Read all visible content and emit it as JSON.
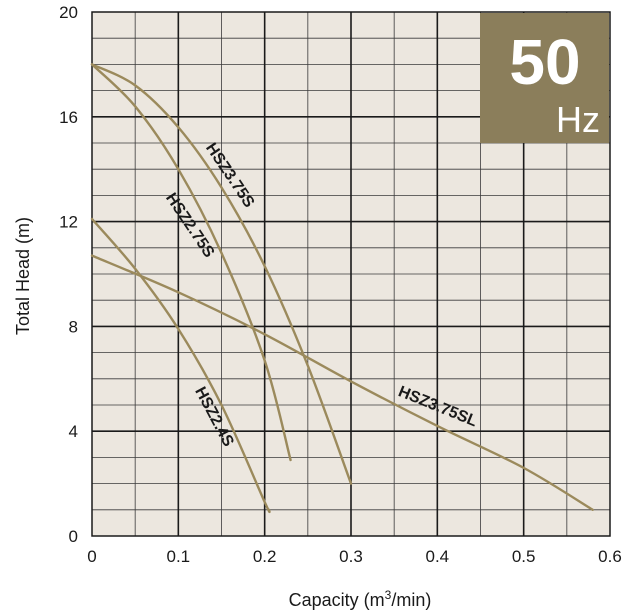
{
  "chart_data": {
    "type": "line",
    "xlabel": "Capacity (m",
    "xlabel_sup": "3",
    "xlabel_tail": "/min)",
    "ylabel": "Total Head (m)",
    "xlim": [
      0,
      0.6
    ],
    "ylim": [
      0,
      20
    ],
    "x_ticks": [
      "0",
      "0.1",
      "0.2",
      "0.3",
      "0.4",
      "0.5",
      "0.6"
    ],
    "y_ticks": [
      "0",
      "4",
      "8",
      "12",
      "16",
      "20"
    ],
    "grid": true,
    "badge": {
      "value": "50",
      "unit": "Hz",
      "color": "#8b7e5b"
    },
    "background_color": "#ece7df",
    "curve_color": "#9b8a5c",
    "series": [
      {
        "name": "HSZ3.75S",
        "x": [
          0,
          0.05,
          0.1,
          0.15,
          0.2,
          0.25,
          0.3
        ],
        "y": [
          18,
          17.2,
          15.6,
          13.3,
          10.3,
          6.5,
          2.0
        ]
      },
      {
        "name": "HSZ2.75S",
        "x": [
          0,
          0.05,
          0.1,
          0.15,
          0.2,
          0.23
        ],
        "y": [
          18,
          16.4,
          14.0,
          10.8,
          6.7,
          2.9
        ]
      },
      {
        "name": "HSZ2.4S",
        "x": [
          0,
          0.05,
          0.1,
          0.15,
          0.2,
          0.205
        ],
        "y": [
          12.1,
          10.2,
          7.9,
          5.0,
          1.3,
          1.0
        ]
      },
      {
        "name": "HSZ3.75SL",
        "x": [
          0,
          0.1,
          0.2,
          0.3,
          0.4,
          0.5,
          0.58
        ],
        "y": [
          10.7,
          9.3,
          7.7,
          5.9,
          4.2,
          2.6,
          1.0
        ]
      }
    ]
  }
}
